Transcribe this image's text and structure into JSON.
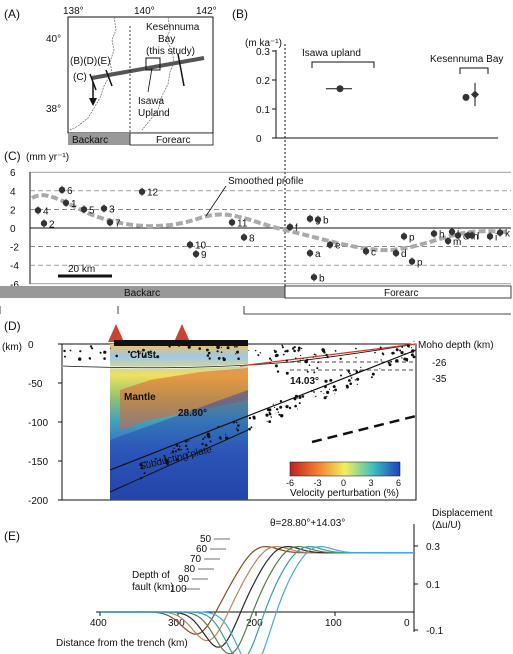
{
  "panelA": {
    "label": "(A)",
    "lon_ticks": [
      "138°",
      "140°",
      "142°"
    ],
    "lat_ticks": [
      "40°",
      "38°"
    ],
    "sub_labels": "(B)(D)(E)",
    "c_label": "(C)",
    "kesennuma": [
      "Kesennuma",
      "Bay",
      "(this study)"
    ],
    "isawa": [
      "Isawa",
      "Upland"
    ],
    "backarc": "Backarc",
    "forearc": "Forearc"
  },
  "panelB": {
    "label": "(B)",
    "unit": "(m ka⁻¹)",
    "y_ticks": [
      "0",
      "0.1",
      "0.2",
      "0.3"
    ],
    "isawa_label": "Isawa upland",
    "kesennuma_label": "Kesennuma Bay",
    "chart_data": {
      "type": "scatter",
      "ylim": [
        0,
        0.3
      ],
      "points": [
        {
          "name": "Isawa upland",
          "values": [
            0.17
          ]
        },
        {
          "name": "Kesennuma Bay",
          "values": [
            0.14,
            0.15
          ]
        }
      ]
    }
  },
  "panelC": {
    "label": "(C)",
    "unit": "(mm yr⁻¹)",
    "y_ticks": [
      "6",
      "4",
      "2",
      "0",
      "-2",
      "-4",
      "-6"
    ],
    "smoothed": "Smoothed profile",
    "scale": "20 km",
    "backarc": "Backarc",
    "forearc": "Forearc",
    "chart_data": {
      "type": "scatter",
      "ylim": [
        -6,
        6
      ],
      "points": [
        {
          "label": "4",
          "y": 1.9
        },
        {
          "label": "2",
          "y": 0.5
        },
        {
          "label": "6",
          "y": 4.1
        },
        {
          "label": "1",
          "y": 2.7
        },
        {
          "label": "5",
          "y": 2.0
        },
        {
          "label": "3",
          "y": 2.1
        },
        {
          "label": "7",
          "y": 0.6
        },
        {
          "label": "12",
          "y": 3.9
        },
        {
          "label": "10",
          "y": -1.8
        },
        {
          "label": "9",
          "y": -2.8
        },
        {
          "label": "11",
          "y": 0.6
        },
        {
          "label": "8",
          "y": -1.0
        },
        {
          "label": "f",
          "y": 0.1
        },
        {
          "label": "g",
          "y": 1.0
        },
        {
          "label": "b",
          "y": 0.9
        },
        {
          "label": "a",
          "y": -2.7
        },
        {
          "label": "b",
          "y": -5.3
        },
        {
          "label": "e",
          "y": -1.8
        },
        {
          "label": "c",
          "y": -2.5
        },
        {
          "label": "d",
          "y": -2.7
        },
        {
          "label": "p",
          "y": -3.6
        },
        {
          "label": "p",
          "y": -0.9
        },
        {
          "label": "h",
          "y": -0.6
        },
        {
          "label": "m",
          "y": -1.4
        },
        {
          "label": "j",
          "y": -0.4
        },
        {
          "label": "o",
          "y": -0.8
        },
        {
          "label": "n",
          "y": -0.8
        },
        {
          "label": "l",
          "y": -0.8
        },
        {
          "label": "i",
          "y": -0.9
        },
        {
          "label": "k",
          "y": -0.5
        }
      ]
    }
  },
  "panelD": {
    "label": "(D)",
    "unit": "(km)",
    "y_ticks": [
      "0",
      "-50",
      "-100",
      "-150",
      "-200"
    ],
    "moho": "Moho depth (km)",
    "moho_vals": [
      "-26",
      "-35"
    ],
    "crust": "Crust",
    "mantle": "Mantle",
    "plate": "Subducting plate",
    "angle1": "28.80°",
    "angle2": "14.03°",
    "colorbar_ticks": [
      "-6",
      "-3",
      "0",
      "3",
      "6"
    ],
    "colorbar_label": "Velocity perturbation (%)"
  },
  "panelE": {
    "label": "(E)",
    "theta": "θ=28.80°+14.03°",
    "depth_label": [
      "Depth of",
      "fault (km)"
    ],
    "depths": [
      "50",
      "60",
      "70",
      "80",
      "90",
      "100"
    ],
    "disp_label": [
      "Displacement",
      "(Δu/U)"
    ],
    "y_ticks": [
      "0.3",
      "0.1",
      "-0.1"
    ],
    "x_ticks": [
      "400",
      "300",
      "200",
      "100",
      "0"
    ],
    "x_label": "Distance from the trench (km)",
    "colors": [
      "#8a4a2a",
      "#b9875a",
      "#2a2a2a",
      "#5a7a4a",
      "#3aa0a0",
      "#4aa8d8"
    ]
  }
}
